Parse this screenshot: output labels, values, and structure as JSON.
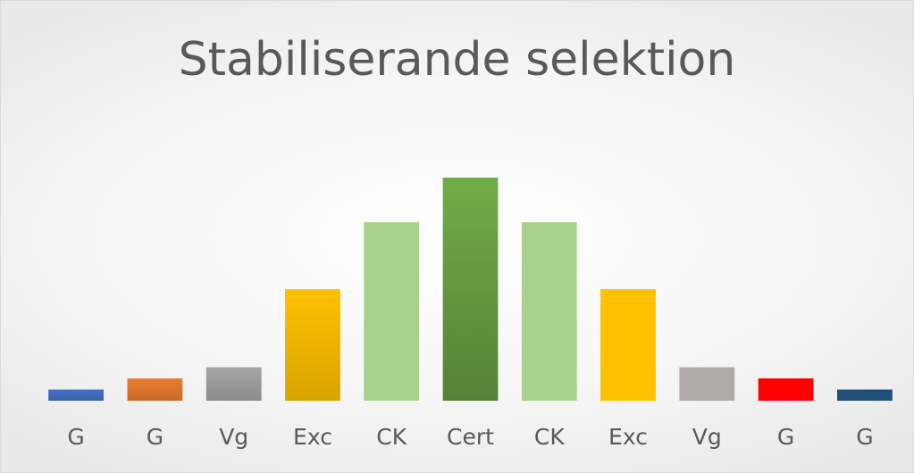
{
  "chart_data": {
    "type": "bar",
    "title": "Stabiliserande selektion",
    "categories": [
      "G",
      "G",
      "Vg",
      "Exc",
      "CK",
      "Cert",
      "CK",
      "Exc",
      "Vg",
      "G",
      "G"
    ],
    "values": [
      5,
      10,
      15,
      50,
      80,
      100,
      80,
      50,
      15,
      10,
      5
    ],
    "ylim": [
      0,
      100
    ],
    "grid": false,
    "legend": "none",
    "bar_colors": [
      "#4472c4",
      "#ed7d31",
      "#a5a5a5",
      "#ffc000",
      "#a9d18e",
      "#70ad47",
      "#a9d18e",
      "#ffc000",
      "#aeaaaa",
      "#ff0000",
      "#1f4e79"
    ],
    "bar_shade_colors": [
      "#3a62a8",
      "#c9682a",
      "#8c8c8c",
      "#d9a400",
      "#a9d18e",
      "#548235",
      "#a9d18e",
      "#ffc000",
      "#aeaaaa",
      "#ff0000",
      "#1f4e79"
    ]
  }
}
